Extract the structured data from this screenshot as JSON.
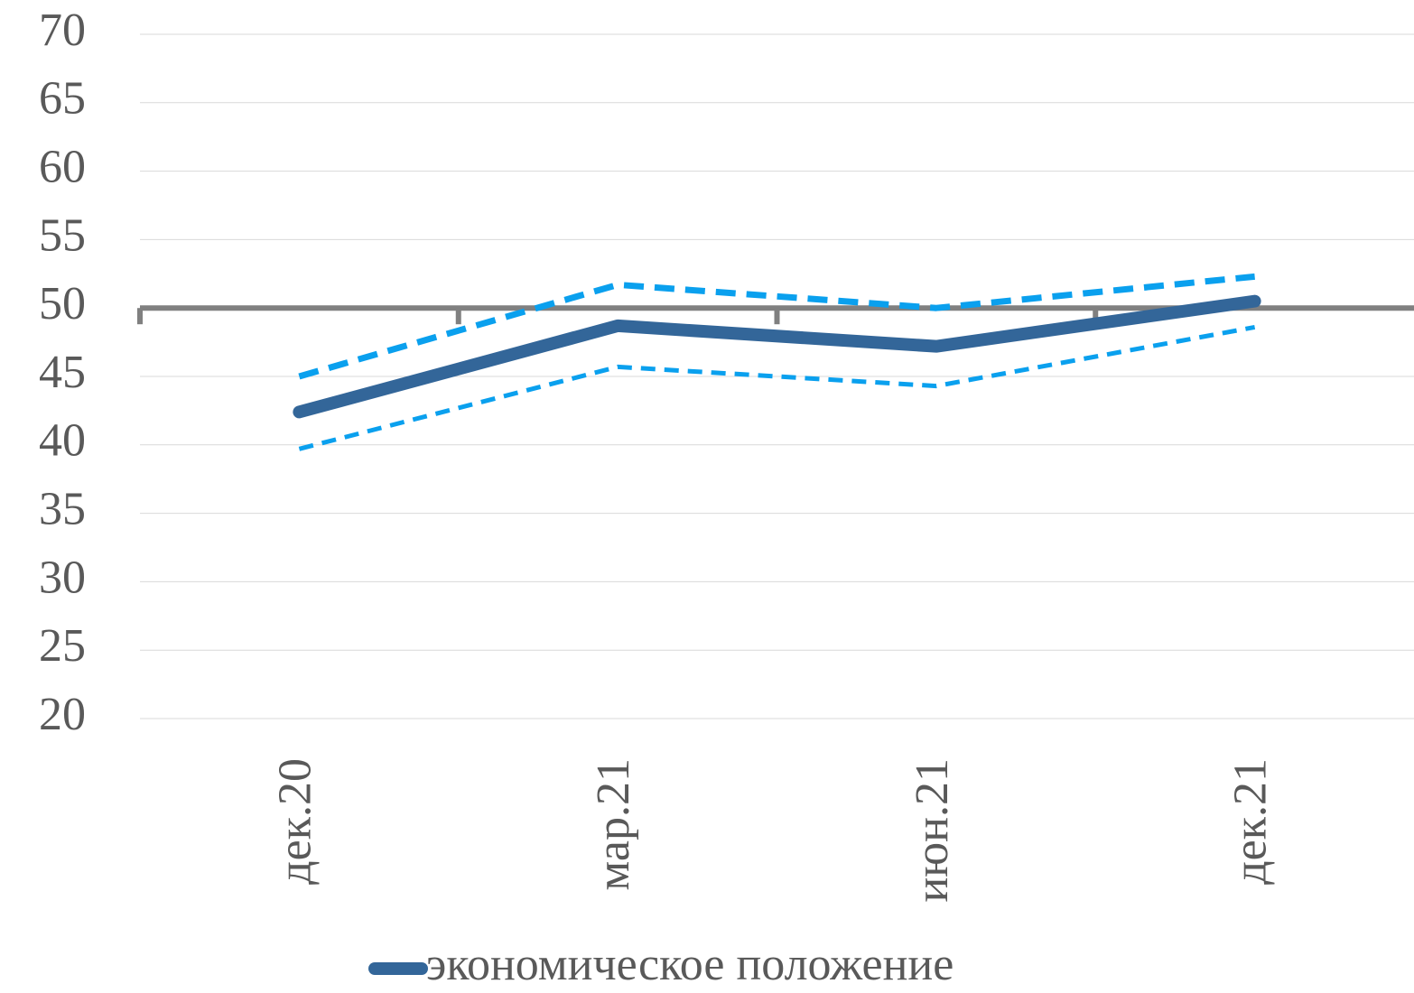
{
  "chart_data": {
    "type": "line",
    "categories": [
      "дек.20",
      "мар.21",
      "июн.21",
      "дек.21"
    ],
    "series": [
      {
        "name": "экономическое положение",
        "color": "#336699",
        "values": [
          42.4,
          48.7,
          47.2,
          50.5
        ]
      },
      {
        "color": "#0aa0ee",
        "values": [
          45.0,
          51.7,
          50.0,
          52.3
        ]
      },
      {
        "color": "#0aa0ee",
        "values": [
          39.7,
          45.7,
          44.3,
          48.6
        ]
      }
    ],
    "ylim": [
      20,
      70
    ],
    "yticks": [
      20,
      25,
      30,
      35,
      40,
      45,
      50,
      55,
      60,
      65,
      70
    ],
    "grid": true,
    "x_axis_crosses": 50,
    "legend": "bottom"
  }
}
